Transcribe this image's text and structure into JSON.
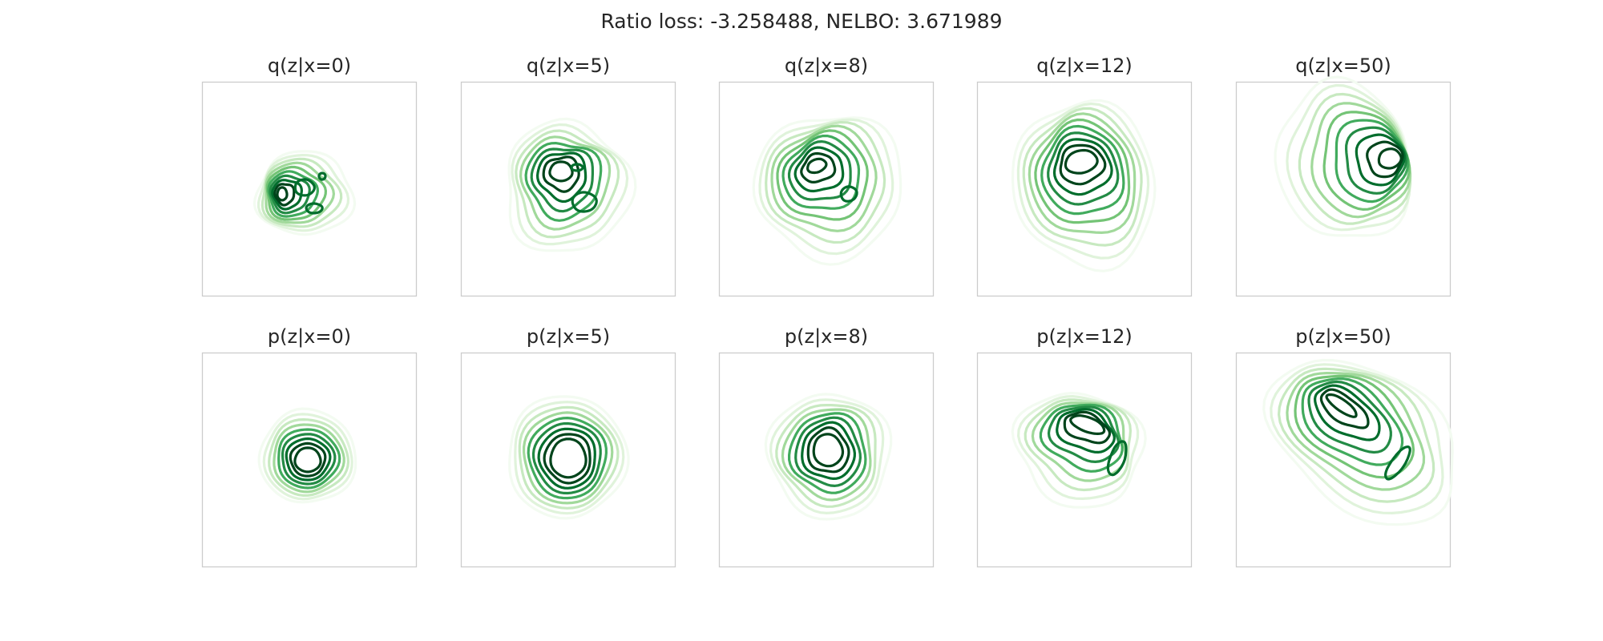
{
  "figure": {
    "suptitle": "Ratio loss: -3.258488, NELBO: 3.671989"
  },
  "colors": {
    "levels": [
      "#f3fbf1",
      "#e0f3db",
      "#c7e9c0",
      "#a1d99b",
      "#74c476",
      "#41ab5d",
      "#238b45",
      "#006d2c",
      "#00441b"
    ],
    "frame": "#cccccc",
    "background": "#ffffff"
  },
  "chart_data": [
    {
      "type": "contour",
      "title": "q(z|x=0)",
      "row": 0,
      "col": 0,
      "grid": false,
      "axes_ticks": false
    },
    {
      "type": "contour",
      "title": "q(z|x=5)",
      "row": 0,
      "col": 1,
      "grid": false,
      "axes_ticks": false
    },
    {
      "type": "contour",
      "title": "q(z|x=8)",
      "row": 0,
      "col": 2,
      "grid": false,
      "axes_ticks": false
    },
    {
      "type": "contour",
      "title": "q(z|x=12)",
      "row": 0,
      "col": 3,
      "grid": false,
      "axes_ticks": false
    },
    {
      "type": "contour",
      "title": "q(z|x=50)",
      "row": 0,
      "col": 4,
      "grid": false,
      "axes_ticks": false
    },
    {
      "type": "contour",
      "title": "p(z|x=0)",
      "row": 1,
      "col": 0,
      "grid": false,
      "axes_ticks": false
    },
    {
      "type": "contour",
      "title": "p(z|x=5)",
      "row": 1,
      "col": 1,
      "grid": false,
      "axes_ticks": false
    },
    {
      "type": "contour",
      "title": "p(z|x=8)",
      "row": 1,
      "col": 2,
      "grid": false,
      "axes_ticks": false
    },
    {
      "type": "contour",
      "title": "p(z|x=12)",
      "row": 1,
      "col": 3,
      "grid": false,
      "axes_ticks": false
    },
    {
      "type": "contour",
      "title": "p(z|x=50)",
      "row": 1,
      "col": 4,
      "grid": false,
      "axes_ticks": false
    }
  ]
}
